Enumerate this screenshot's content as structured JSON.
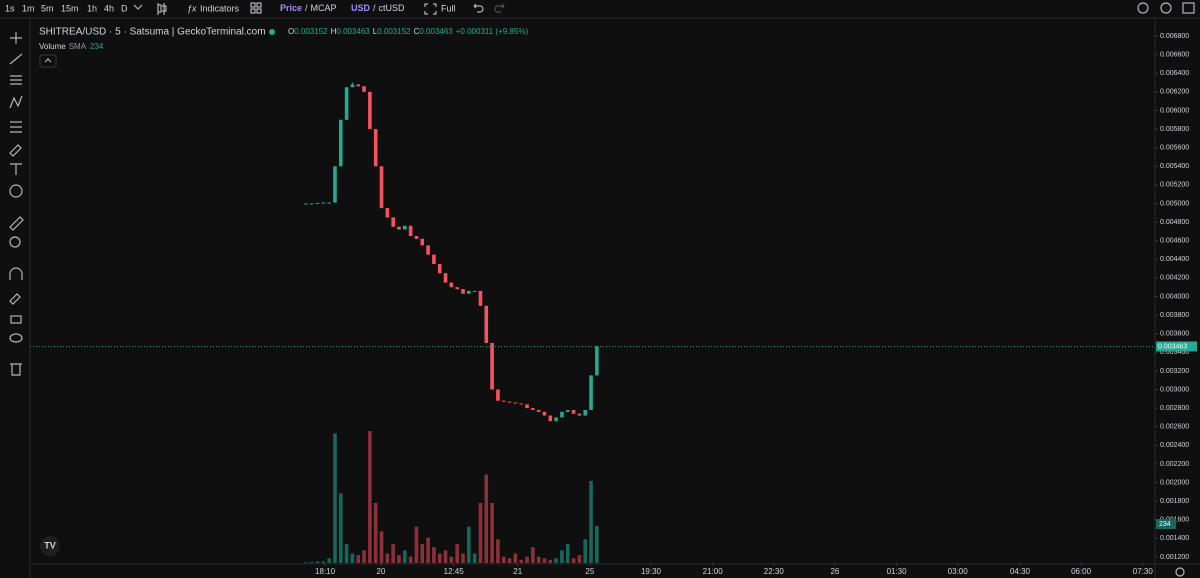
{
  "toolbar": {
    "intervals": [
      "1s",
      "1m",
      "5m",
      "15m",
      "1h",
      "4h",
      "D"
    ],
    "selected": 2,
    "indicators": "Indicators",
    "price": "Price",
    "mcap": "MCAP",
    "separator": "/",
    "usd": "USD",
    "ctusd": "ctUSD",
    "full": "Full"
  },
  "legend": {
    "title": "SHITREA/USD · 5 · Satsuma | GeckoTerminal.com",
    "o": "O",
    "h": "H",
    "l": "L",
    "c": "C",
    "change": "+0.000311 (+9.85%)",
    "volume": "Volume",
    "sma": "SMA"
  },
  "chart_data": {
    "type": "candlestick",
    "open": [
      0.005,
      0.005,
      0.005,
      0.005005,
      0.00501,
      0.00501,
      0.0054,
      0.0059,
      0.00625,
      0.00628,
      0.00626,
      0.0062,
      0.0058,
      0.0054,
      0.00495,
      0.00485,
      0.00475,
      0.00472,
      0.00476,
      0.00465,
      0.00462,
      0.00455,
      0.00445,
      0.00435,
      0.00425,
      0.00415,
      0.0041,
      0.00408,
      0.00403,
      0.00406,
      0.00406,
      0.0039,
      0.0035,
      0.003,
      0.00288,
      0.00287,
      0.00286,
      0.00285,
      0.00284,
      0.0028,
      0.00278,
      0.00276,
      0.00272,
      0.00266,
      0.0027,
      0.00276,
      0.00278,
      0.00274,
      0.00272,
      0.00278,
      0.003152
    ],
    "high": [
      0.005,
      0.005,
      0.005005,
      0.00501,
      0.00501,
      0.0054,
      0.0059,
      0.00625,
      0.0063,
      0.00628,
      0.00626,
      0.0062,
      0.0058,
      0.0054,
      0.00495,
      0.00485,
      0.00475,
      0.00476,
      0.00476,
      0.00465,
      0.00462,
      0.00455,
      0.00445,
      0.00435,
      0.00425,
      0.00415,
      0.0041,
      0.00408,
      0.00406,
      0.00406,
      0.00406,
      0.0039,
      0.0035,
      0.003,
      0.00288,
      0.00287,
      0.00286,
      0.00285,
      0.00284,
      0.0028,
      0.00278,
      0.00276,
      0.00272,
      0.0027,
      0.00276,
      0.00278,
      0.00278,
      0.00274,
      0.00278,
      0.003152,
      0.003463
    ],
    "low": [
      0.005,
      0.005,
      0.005,
      0.005005,
      0.00501,
      0.00501,
      0.0054,
      0.0059,
      0.00625,
      0.00626,
      0.0062,
      0.0058,
      0.0054,
      0.00495,
      0.00485,
      0.00475,
      0.00472,
      0.00472,
      0.00465,
      0.00462,
      0.00455,
      0.00445,
      0.00435,
      0.00425,
      0.00415,
      0.0041,
      0.00408,
      0.00403,
      0.00403,
      0.00406,
      0.0039,
      0.0035,
      0.003,
      0.00288,
      0.00287,
      0.00286,
      0.00285,
      0.00284,
      0.0028,
      0.00278,
      0.00276,
      0.00272,
      0.00266,
      0.00266,
      0.0027,
      0.00276,
      0.00274,
      0.00272,
      0.00272,
      0.00278,
      0.003152
    ],
    "close": [
      0.005,
      0.005,
      0.005005,
      0.00501,
      0.00501,
      0.0054,
      0.0059,
      0.00625,
      0.00628,
      0.00626,
      0.0062,
      0.0058,
      0.0054,
      0.00495,
      0.00485,
      0.00475,
      0.00472,
      0.00476,
      0.00465,
      0.00462,
      0.00455,
      0.00445,
      0.00435,
      0.00425,
      0.00415,
      0.0041,
      0.00408,
      0.00403,
      0.00406,
      0.00406,
      0.0039,
      0.0035,
      0.003,
      0.00288,
      0.00287,
      0.00286,
      0.00285,
      0.00284,
      0.0028,
      0.00278,
      0.00276,
      0.00272,
      0.00266,
      0.0027,
      0.00276,
      0.00278,
      0.00274,
      0.00272,
      0.00278,
      0.003152,
      0.003463
    ],
    "volume": [
      5,
      5,
      10,
      10,
      30,
      820,
      440,
      120,
      60,
      50,
      80,
      835,
      380,
      200,
      60,
      120,
      50,
      80,
      40,
      230,
      120,
      160,
      100,
      60,
      80,
      40,
      120,
      60,
      230,
      60,
      380,
      560,
      380,
      150,
      40,
      30,
      60,
      20,
      40,
      100,
      40,
      30,
      20,
      30,
      80,
      120,
      30,
      50,
      150,
      520,
      234
    ],
    "up_color": "#22ab94",
    "down_color": "#f7525f",
    "up_volume_color": "#14685c",
    "down_volume_color": "#8c303a",
    "xlim": [
      -47.4,
      145.9
    ],
    "xticks": [
      {
        "value": 3.3,
        "label": "18:10"
      },
      {
        "value": 12.9,
        "label": "20"
      },
      {
        "value": 25.4,
        "label": "12:45"
      },
      {
        "value": 36.4,
        "label": "21"
      },
      {
        "value": 48.8,
        "label": "25"
      },
      {
        "value": 59.3,
        "label": "19:30"
      },
      {
        "value": 69.9,
        "label": "21:00"
      },
      {
        "value": 80.4,
        "label": "22:30"
      },
      {
        "value": 90.9,
        "label": "26"
      },
      {
        "value": 101.5,
        "label": "01:30"
      },
      {
        "value": 112,
        "label": "03:00"
      },
      {
        "value": 122.7,
        "label": "04:30"
      },
      {
        "value": 133.2,
        "label": "06:00"
      },
      {
        "value": 143.8,
        "label": "07:30"
      }
    ],
    "ylim": [
      0.001135,
      0.006994
    ],
    "yticks": [
      {
        "value": 0.0068,
        "label": "0.006800"
      },
      {
        "value": 0.0066,
        "label": "0.006600"
      },
      {
        "value": 0.0064,
        "label": "0.006400"
      },
      {
        "value": 0.0062,
        "label": "0.006200"
      },
      {
        "value": 0.006,
        "label": "0.006000"
      },
      {
        "value": 0.0058,
        "label": "0.005800"
      },
      {
        "value": 0.0056,
        "label": "0.005600"
      },
      {
        "value": 0.0054,
        "label": "0.005400"
      },
      {
        "value": 0.0052,
        "label": "0.005200"
      },
      {
        "value": 0.005,
        "label": "0.005000"
      },
      {
        "value": 0.0048,
        "label": "0.004800"
      },
      {
        "value": 0.0046,
        "label": "0.004600"
      },
      {
        "value": 0.0044,
        "label": "0.004400"
      },
      {
        "value": 0.0042,
        "label": "0.004200"
      },
      {
        "value": 0.004,
        "label": "0.004000"
      },
      {
        "value": 0.0038,
        "label": "0.003800"
      },
      {
        "value": 0.0036,
        "label": "0.003600"
      },
      {
        "value": 0.0034,
        "label": "0.003400"
      },
      {
        "value": 0.0032,
        "label": "0.003200"
      },
      {
        "value": 0.003,
        "label": "0.003000"
      },
      {
        "value": 0.0028,
        "label": "0.002800"
      },
      {
        "value": 0.0026,
        "label": "0.002600"
      },
      {
        "value": 0.0024,
        "label": "0.002400"
      },
      {
        "value": 0.0022,
        "label": "0.002200"
      },
      {
        "value": 0.002,
        "label": "0.002000"
      },
      {
        "value": 0.0018,
        "label": "0.001800"
      },
      {
        "value": 0.0016,
        "label": "0.001600"
      },
      {
        "value": 0.0014,
        "label": "0.001400"
      },
      {
        "value": 0.0012,
        "label": "0.001200"
      }
    ]
  }
}
